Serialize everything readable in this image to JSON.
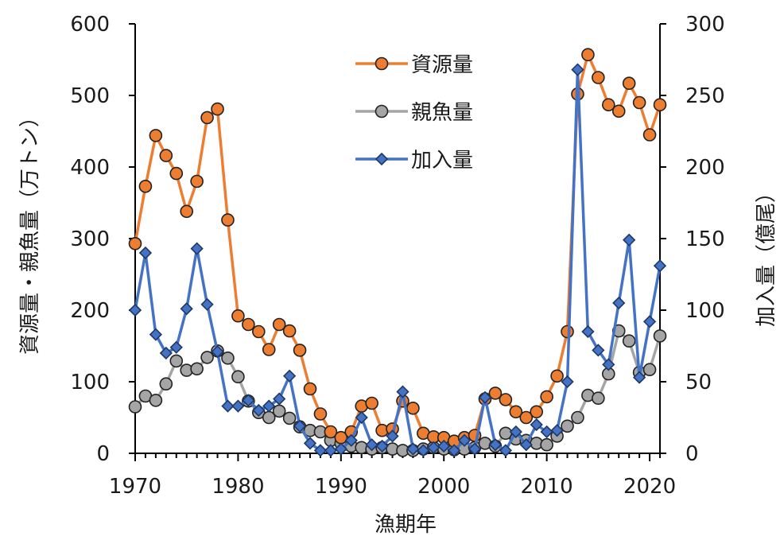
{
  "chart_data": {
    "type": "line",
    "xlabel": "漁期年",
    "ylabel_left": "資源量・親魚量（万トン）",
    "ylabel_right": "加入量（億尾）",
    "xlim": [
      1970,
      2021
    ],
    "ylim_left": [
      0,
      600
    ],
    "ylim_right": [
      0,
      300
    ],
    "xticks": [
      "1970",
      "1980",
      "1990",
      "2000",
      "2010",
      "2020"
    ],
    "yticks_left": [
      "0",
      "100",
      "200",
      "300",
      "400",
      "500",
      "600"
    ],
    "yticks_right": [
      "0",
      "50",
      "100",
      "150",
      "200",
      "250",
      "300"
    ],
    "grid": false,
    "legend_position": "top-center",
    "x": [
      1970,
      1971,
      1972,
      1973,
      1974,
      1975,
      1976,
      1977,
      1978,
      1979,
      1980,
      1981,
      1982,
      1983,
      1984,
      1985,
      1986,
      1987,
      1988,
      1989,
      1990,
      1991,
      1992,
      1993,
      1994,
      1995,
      1996,
      1997,
      1998,
      1999,
      2000,
      2001,
      2002,
      2003,
      2004,
      2005,
      2006,
      2007,
      2008,
      2009,
      2010,
      2011,
      2012,
      2013,
      2014,
      2015,
      2016,
      2017,
      2018,
      2019,
      2020,
      2021
    ],
    "series": [
      {
        "name": "資源量",
        "axis": "left",
        "color": "#ed7d31",
        "marker": "circle",
        "values": [
          293,
          373,
          444,
          416,
          391,
          338,
          380,
          469,
          481,
          326,
          192,
          180,
          170,
          145,
          180,
          171,
          144,
          90,
          55,
          30,
          22,
          30,
          66,
          70,
          32,
          34,
          73,
          63,
          28,
          23,
          22,
          17,
          22,
          25,
          76,
          84,
          75,
          58,
          50,
          58,
          79,
          108,
          170,
          502,
          557,
          525,
          487,
          478,
          517,
          490,
          445,
          487
        ]
      },
      {
        "name": "親魚量",
        "axis": "left",
        "color": "#a5a5a5",
        "marker": "circle",
        "values": [
          65,
          80,
          74,
          97,
          129,
          116,
          118,
          134,
          143,
          133,
          107,
          73,
          57,
          50,
          59,
          49,
          37,
          32,
          30,
          18,
          14,
          10,
          8,
          6,
          8,
          6,
          4,
          4,
          6,
          8,
          6,
          5,
          6,
          8,
          14,
          10,
          28,
          20,
          18,
          14,
          12,
          24,
          38,
          50,
          81,
          77,
          111,
          171,
          157,
          113,
          117,
          164
        ]
      },
      {
        "name": "加入量",
        "axis": "right",
        "color": "#4472c4",
        "marker": "diamond",
        "values": [
          100,
          140,
          83,
          70,
          74,
          101,
          143,
          104,
          71,
          33,
          33,
          37,
          30,
          33,
          38,
          54,
          19,
          7,
          2,
          2,
          3,
          9,
          25,
          6,
          5,
          12,
          43,
          3,
          2,
          4,
          5,
          2,
          9,
          3,
          39,
          6,
          2,
          15,
          6,
          20,
          15,
          16,
          50,
          268,
          85,
          72,
          62,
          105,
          149,
          53,
          92,
          131
        ]
      }
    ]
  }
}
